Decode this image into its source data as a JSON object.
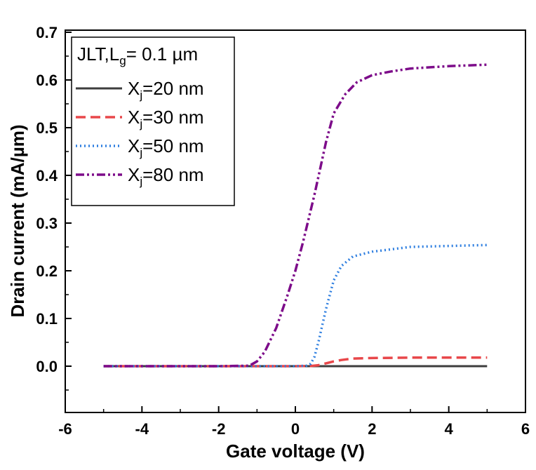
{
  "chart_data": {
    "type": "line",
    "xlabel": "Gate voltage (V)",
    "ylabel": "Drain current (mA/µm)",
    "xlim": [
      -6,
      6
    ],
    "ylim": [
      -0.09,
      0.7
    ],
    "xticks": [
      -6,
      -4,
      -2,
      0,
      2,
      4,
      6
    ],
    "xtick_labels": [
      "-6",
      "-4",
      "-2",
      "0",
      "2",
      "4",
      "6"
    ],
    "yticks": [
      0.0,
      0.1,
      0.2,
      0.3,
      0.4,
      0.5,
      0.6,
      0.7
    ],
    "ytick_labels": [
      "0.0",
      "0.1",
      "0.2",
      "0.3",
      "0.4",
      "0.5",
      "0.6",
      "0.7"
    ],
    "legend": {
      "placement": "top-left",
      "title_main": "JLT,L",
      "title_sub": "g",
      "title_rest": "= 0.1 µm"
    },
    "series": [
      {
        "name": "X_j=20 nm",
        "label_main": "X",
        "label_sub": "j",
        "label_rest": "=20 nm",
        "color": "#3d3d3d",
        "dash": "solid",
        "x": [
          -5,
          -4,
          -3,
          -2,
          -1,
          0,
          1,
          2,
          3,
          4,
          5
        ],
        "y": [
          0,
          0,
          0,
          0,
          0,
          0,
          0,
          0,
          0,
          0,
          0
        ]
      },
      {
        "name": "X_j=30 nm",
        "label_main": "X",
        "label_sub": "j",
        "label_rest": "=30 nm",
        "color": "#e8474a",
        "dash": "dash",
        "x": [
          -5,
          -4,
          -3,
          -2,
          -1,
          0,
          0.4,
          0.6,
          0.8,
          1.0,
          1.2,
          1.5,
          2,
          3,
          4,
          5
        ],
        "y": [
          0,
          0,
          0,
          0,
          0,
          0,
          0.0005,
          0.002,
          0.006,
          0.01,
          0.013,
          0.016,
          0.017,
          0.018,
          0.018,
          0.018
        ]
      },
      {
        "name": "X_j=50 nm",
        "label_main": "X",
        "label_sub": "j",
        "label_rest": "=50 nm",
        "color": "#2f7fe0",
        "dash": "dot",
        "x": [
          -5,
          -4,
          -3,
          -2,
          -1,
          0,
          0.3,
          0.4,
          0.5,
          0.6,
          0.8,
          1.0,
          1.2,
          1.5,
          2,
          2.5,
          3,
          4,
          5
        ],
        "y": [
          0,
          0,
          0,
          0,
          0,
          0,
          0.001,
          0.005,
          0.02,
          0.05,
          0.12,
          0.18,
          0.21,
          0.23,
          0.24,
          0.245,
          0.25,
          0.252,
          0.254
        ]
      },
      {
        "name": "X_j=80 nm",
        "label_main": "X",
        "label_sub": "j",
        "label_rest": "=80 nm",
        "color": "#7d0c8a",
        "dash": "dashdotdot",
        "x": [
          -5,
          -4,
          -3,
          -2,
          -1.2,
          -1.0,
          -0.8,
          -0.5,
          -0.2,
          0,
          0.2,
          0.5,
          0.8,
          1.0,
          1.3,
          1.6,
          2,
          2.5,
          3,
          4,
          5
        ],
        "y": [
          0,
          0,
          0,
          0,
          0.001,
          0.01,
          0.03,
          0.08,
          0.15,
          0.2,
          0.26,
          0.36,
          0.47,
          0.53,
          0.57,
          0.595,
          0.61,
          0.618,
          0.624,
          0.629,
          0.632
        ]
      }
    ]
  }
}
